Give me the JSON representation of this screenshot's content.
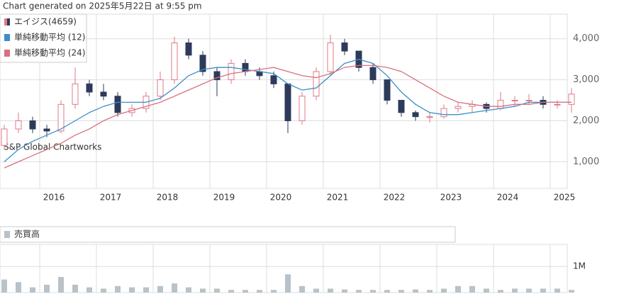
{
  "chart_data": {
    "type": "candlestick",
    "title": "Chart generated on 2025年5月22日 at 9:55 pm",
    "watermark": "S&P Global Chartworks",
    "name": "エイジス(4659)",
    "up_color": "#e07a85",
    "down_color": "#2d3a5a",
    "x": [
      2015.375,
      2015.625,
      2015.875,
      2016.125,
      2016.375,
      2016.625,
      2016.875,
      2017.125,
      2017.375,
      2017.625,
      2017.875,
      2018.125,
      2018.375,
      2018.625,
      2018.875,
      2019.125,
      2019.375,
      2019.625,
      2019.875,
      2020.125,
      2020.375,
      2020.625,
      2020.875,
      2021.125,
      2021.375,
      2021.625,
      2021.875,
      2022.125,
      2022.375,
      2022.625,
      2022.875,
      2023.125,
      2023.375,
      2023.625,
      2023.875,
      2024.125,
      2024.375,
      2024.625,
      2024.875,
      2025.125,
      2025.375
    ],
    "open": [
      1400,
      1800,
      2000,
      1800,
      1750,
      2400,
      2900,
      2700,
      2600,
      2200,
      2300,
      2600,
      3000,
      3900,
      3600,
      3200,
      3000,
      3400,
      3200,
      3100,
      2900,
      2000,
      2600,
      3200,
      3900,
      3700,
      3300,
      3000,
      2500,
      2200,
      2100,
      2100,
      2300,
      2350,
      2400,
      2300,
      2500,
      2500,
      2500,
      2400,
      2400
    ],
    "high": [
      1900,
      2200,
      2100,
      1900,
      2500,
      3300,
      3000,
      2900,
      2700,
      2400,
      2700,
      3200,
      4050,
      4000,
      3700,
      3300,
      3500,
      3500,
      3300,
      3200,
      2900,
      2700,
      3300,
      4100,
      4000,
      3700,
      3400,
      3000,
      2500,
      2250,
      2200,
      2400,
      2450,
      2500,
      2450,
      2700,
      2600,
      2650,
      2600,
      2500,
      2800
    ],
    "low": [
      1300,
      1700,
      1700,
      1600,
      1700,
      2300,
      2600,
      2500,
      2100,
      2100,
      2200,
      2500,
      2900,
      3500,
      3100,
      2600,
      2900,
      3100,
      3000,
      2800,
      1700,
      1900,
      2500,
      3100,
      3600,
      3200,
      2900,
      2400,
      2100,
      2000,
      1950,
      2050,
      2200,
      2200,
      2200,
      2250,
      2350,
      2400,
      2300,
      2300,
      2200
    ],
    "close": [
      1800,
      2000,
      1800,
      1750,
      2400,
      2900,
      2700,
      2600,
      2200,
      2300,
      2600,
      3000,
      3900,
      3600,
      3200,
      3000,
      3400,
      3200,
      3100,
      2900,
      2000,
      2600,
      3200,
      3900,
      3700,
      3300,
      3000,
      2500,
      2200,
      2100,
      2100,
      2300,
      2350,
      2400,
      2300,
      2500,
      2500,
      2500,
      2400,
      2400,
      2650
    ],
    "moving_averages": [
      {
        "name": "単純移動平均 (12)",
        "color": "#3a8fc7",
        "values": [
          1000,
          1300,
          1500,
          1650,
          1800,
          2000,
          2200,
          2350,
          2450,
          2450,
          2450,
          2550,
          2800,
          3100,
          3250,
          3300,
          3300,
          3250,
          3200,
          3150,
          2900,
          2750,
          2800,
          3100,
          3400,
          3500,
          3400,
          3100,
          2700,
          2400,
          2200,
          2150,
          2150,
          2200,
          2250,
          2300,
          2350,
          2450,
          2450,
          2450,
          2450
        ]
      },
      {
        "name": "単純移動平均 (24)",
        "color": "#d9707d",
        "values": [
          850,
          1000,
          1150,
          1300,
          1450,
          1650,
          1800,
          2000,
          2150,
          2250,
          2350,
          2450,
          2600,
          2750,
          2900,
          3050,
          3150,
          3200,
          3250,
          3300,
          3200,
          3100,
          3050,
          3150,
          3300,
          3350,
          3350,
          3300,
          3200,
          3000,
          2800,
          2600,
          2450,
          2400,
          2350,
          2350,
          2400,
          2400,
          2450,
          2450,
          2450
        ]
      }
    ],
    "xlim": [
      2015.3,
      2025.3
    ],
    "xticks": [
      2016,
      2017,
      2018,
      2019,
      2020,
      2021,
      2022,
      2023,
      2024,
      2025
    ],
    "ylim": [
      350,
      4600
    ],
    "yticks": [
      {
        "value": 1000,
        "label": "1,000"
      },
      {
        "value": 2000,
        "label": "2,000"
      },
      {
        "value": 3000,
        "label": "3,000"
      },
      {
        "value": 4000,
        "label": "4,000"
      }
    ],
    "grid": true,
    "volume": {
      "name": "売買高",
      "color": "#b8c2c8",
      "values": [
        500000,
        400000,
        200000,
        300000,
        600000,
        300000,
        200000,
        150000,
        250000,
        200000,
        200000,
        250000,
        350000,
        200000,
        150000,
        150000,
        100000,
        100000,
        100000,
        100000,
        700000,
        250000,
        150000,
        150000,
        120000,
        100000,
        100000,
        100000,
        100000,
        120000,
        100000,
        150000,
        250000,
        250000,
        150000,
        100000,
        150000,
        150000,
        150000,
        150000,
        100000
      ],
      "ylim": [
        0,
        1850000
      ],
      "yticks": [
        {
          "value": 1000000,
          "label": "1M"
        }
      ]
    }
  }
}
